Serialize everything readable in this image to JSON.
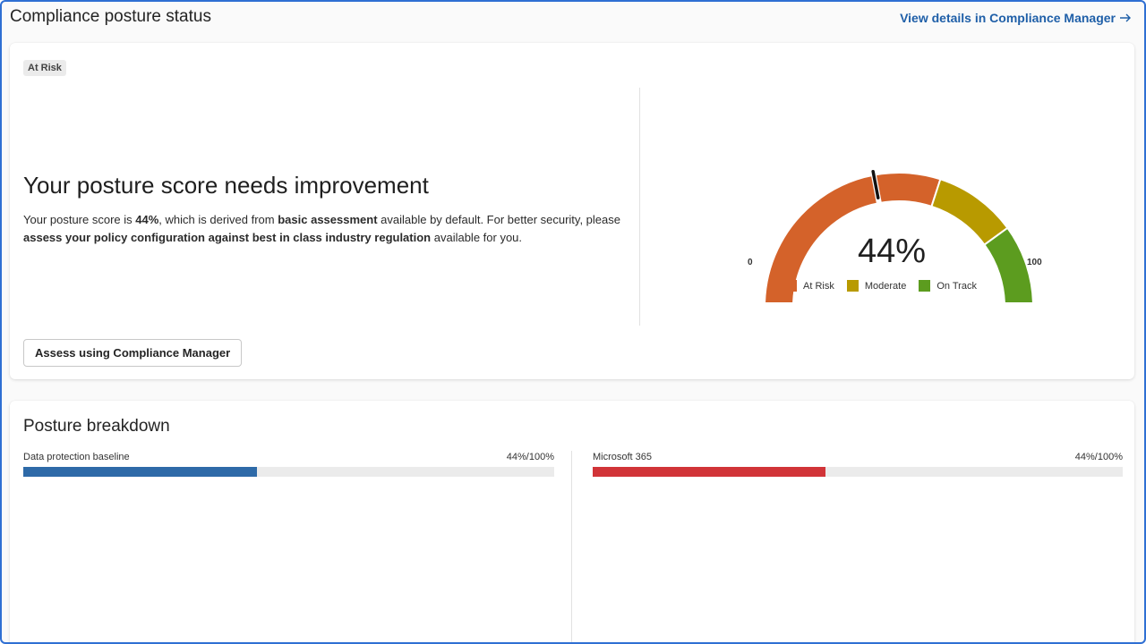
{
  "header": {
    "title": "Compliance posture status",
    "view_link": "View details in Compliance Manager"
  },
  "status_card": {
    "badge": "At Risk",
    "headline": "Your posture score needs improvement",
    "description": {
      "t1": "Your posture score is ",
      "b1": "44%",
      "t2": ", which is derived from ",
      "b2": "basic assessment",
      "t3": " available by default. For better security, please ",
      "b3": "assess your policy configuration against best in class industry regulation",
      "t4": " available for you."
    },
    "assess_button": "Assess using Compliance Manager"
  },
  "gauge": {
    "value_label": "44%",
    "value": 44,
    "min_label": "0",
    "max_label": "100",
    "segments": [
      {
        "name": "At Risk",
        "from": 0,
        "to": 60,
        "color": "#d4622a"
      },
      {
        "name": "Moderate",
        "from": 60,
        "to": 80,
        "color": "#b89a00"
      },
      {
        "name": "On Track",
        "from": 80,
        "to": 100,
        "color": "#5c9c1f"
      }
    ],
    "legend": [
      {
        "label": "At Risk",
        "color": "#d4622a"
      },
      {
        "label": "Moderate",
        "color": "#b89a00"
      },
      {
        "label": "On Track",
        "color": "#5c9c1f"
      }
    ]
  },
  "breakdown": {
    "title": "Posture breakdown",
    "items": [
      {
        "label": "Data protection baseline",
        "value_label": "44%/100%",
        "value": 0.44,
        "color": "#2e6aa8"
      },
      {
        "label": "Microsoft 365",
        "value_label": "44%/100%",
        "value": 0.44,
        "color": "#d13438"
      }
    ]
  }
}
